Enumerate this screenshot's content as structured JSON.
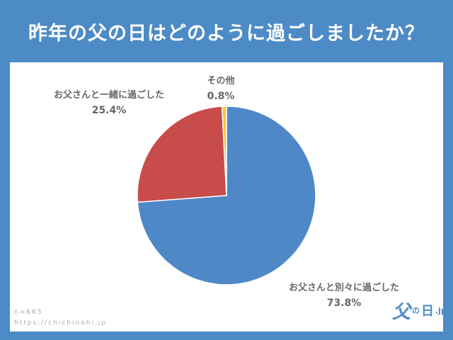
{
  "header": {
    "title": "昨年の父の日はどのように過ごしましたか？"
  },
  "footer": {
    "sample": "n=665",
    "url": "https://chichinohi.jp"
  },
  "logo": {
    "part1": "父",
    "part2": "の",
    "part3": "日",
    "part4": ".jp"
  },
  "colors": {
    "background": "#4d8bc6",
    "card": "#ffffff",
    "text": "#666666"
  },
  "chart_data": {
    "type": "pie",
    "slices": [
      {
        "label": "お父さんと別々に過ごした",
        "value": 73.8,
        "value_label": "73.8%",
        "color": "#4e88c7"
      },
      {
        "label": "お父さんと一緒に過ごした",
        "value": 25.4,
        "value_label": "25.4%",
        "color": "#c84c4a"
      },
      {
        "label": "その他",
        "value": 0.8,
        "value_label": "0.8%",
        "color": "#f5c542"
      }
    ],
    "start_angle": "top",
    "direction": "clockwise"
  }
}
